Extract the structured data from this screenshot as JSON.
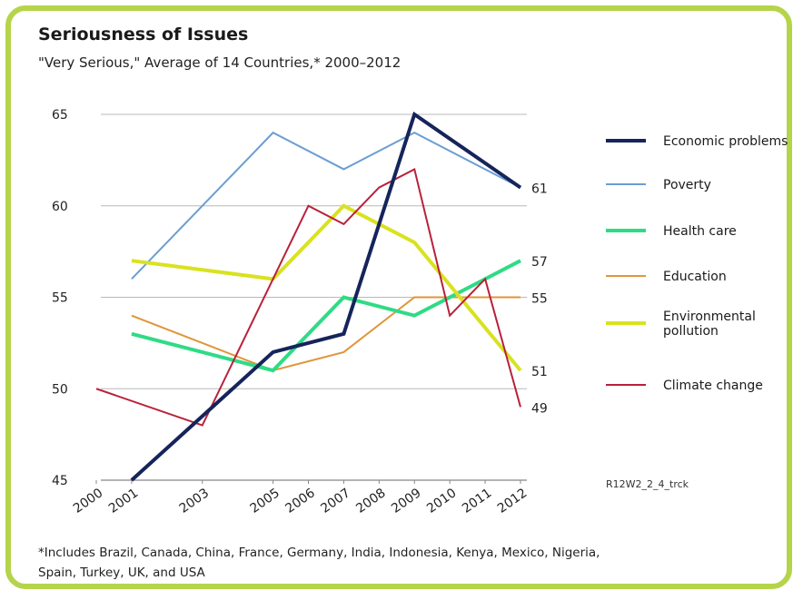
{
  "chart_data": {
    "type": "line",
    "title": "Seriousness of Issues",
    "subtitle": "\"Very Serious,\" Average of 14 Countries,* 2000–2012",
    "footnote": "*Includes Brazil, Canada, China, France, Germany, India, Indonesia, Kenya, Mexico, Nigeria, Spain, Turkey, UK, and USA",
    "code": "R12W2_2_4_trck",
    "x_ticks": [
      "2000",
      "2001",
      "2003",
      "2005",
      "2006",
      "2007",
      "2008",
      "2009",
      "2010",
      "2011",
      "2012"
    ],
    "y_ticks": [
      "45",
      "50",
      "55",
      "60",
      "65"
    ],
    "ylim": [
      45,
      65
    ],
    "legend_placement": "right",
    "series": [
      {
        "name": "Economic problems",
        "color": "#15245a",
        "points": [
          [
            2001,
            45
          ],
          [
            2005,
            52
          ],
          [
            2007,
            53
          ],
          [
            2009,
            65
          ],
          [
            2012,
            61
          ]
        ],
        "end_label": "61"
      },
      {
        "name": "Poverty",
        "color": "#6b9ed1",
        "points": [
          [
            2001,
            56
          ],
          [
            2005,
            64
          ],
          [
            2007,
            62
          ],
          [
            2009,
            64
          ],
          [
            2012,
            61
          ]
        ],
        "end_label": ""
      },
      {
        "name": "Health care",
        "color": "#2fdb85",
        "points": [
          [
            2001,
            53
          ],
          [
            2005,
            51
          ],
          [
            2007,
            55
          ],
          [
            2009,
            54
          ],
          [
            2011,
            56
          ],
          [
            2012,
            57
          ]
        ],
        "end_label": "57"
      },
      {
        "name": "Education",
        "color": "#e0953a",
        "points": [
          [
            2001,
            54
          ],
          [
            2005,
            51
          ],
          [
            2007,
            52
          ],
          [
            2009,
            55
          ],
          [
            2012,
            55
          ]
        ],
        "end_label": "55"
      },
      {
        "name": "Environmental pollution",
        "name_lines": [
          "Environmental",
          "pollution"
        ],
        "color": "#d9e21f",
        "points": [
          [
            2001,
            57
          ],
          [
            2005,
            56
          ],
          [
            2007,
            60
          ],
          [
            2009,
            58
          ],
          [
            2012,
            51
          ]
        ],
        "end_label": "51"
      },
      {
        "name": "Climate change",
        "color": "#b8213a",
        "points": [
          [
            2000,
            50
          ],
          [
            2003,
            48
          ],
          [
            2005,
            56
          ],
          [
            2006,
            60
          ],
          [
            2007,
            59
          ],
          [
            2008,
            61
          ],
          [
            2009,
            62
          ],
          [
            2010,
            54
          ],
          [
            2011,
            56
          ],
          [
            2012,
            49
          ]
        ],
        "end_label": "49"
      }
    ]
  }
}
